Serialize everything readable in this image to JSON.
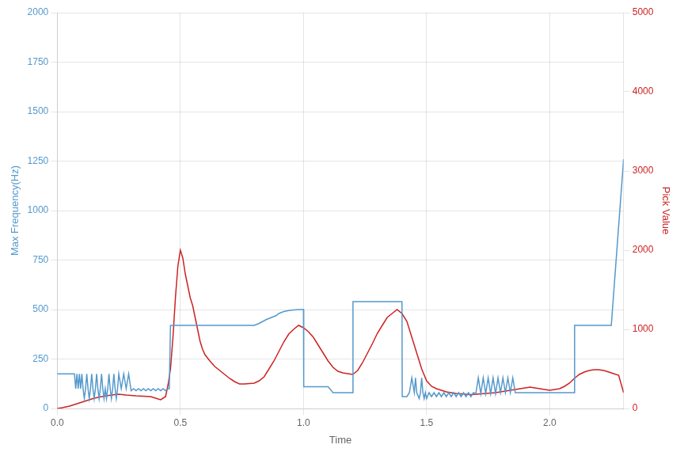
{
  "chart_data": {
    "type": "line",
    "xlabel": "Time",
    "ylabel": "Max Frequency(Hz)",
    "y2label": "Pick Value",
    "xlim": [
      0.0,
      2.3
    ],
    "xticks": [
      {
        "value": 0.0,
        "label": "0.0"
      },
      0.5,
      {
        "value": 1.0,
        "label": "1.0"
      },
      1.5,
      {
        "value": 2.0,
        "label": "2.0"
      }
    ],
    "ylim": [
      0,
      2000
    ],
    "yticks": [
      0,
      250,
      500,
      750,
      1000,
      1250,
      1500,
      1750,
      2000
    ],
    "y2lim": [
      0,
      5000
    ],
    "y2ticks": [
      0,
      1000,
      2000,
      3000,
      4000,
      5000
    ],
    "grid": true,
    "series": [
      {
        "color": "#5599cc",
        "axis": "y",
        "x": [
          0.0,
          0.01,
          0.02,
          0.03,
          0.04,
          0.05,
          0.06,
          0.07,
          0.075,
          0.08,
          0.085,
          0.09,
          0.095,
          0.1,
          0.105,
          0.11,
          0.115,
          0.12,
          0.125,
          0.13,
          0.135,
          0.14,
          0.145,
          0.15,
          0.155,
          0.16,
          0.165,
          0.17,
          0.175,
          0.18,
          0.185,
          0.19,
          0.195,
          0.2,
          0.205,
          0.21,
          0.215,
          0.22,
          0.225,
          0.23,
          0.235,
          0.24,
          0.245,
          0.25,
          0.26,
          0.27,
          0.28,
          0.29,
          0.3,
          0.31,
          0.32,
          0.33,
          0.34,
          0.35,
          0.36,
          0.37,
          0.38,
          0.39,
          0.4,
          0.41,
          0.42,
          0.43,
          0.44,
          0.45,
          0.455,
          0.46,
          0.47,
          0.5,
          0.55,
          0.6,
          0.65,
          0.7,
          0.75,
          0.8,
          0.82,
          0.85,
          0.87,
          0.89,
          0.9,
          0.92,
          0.94,
          0.96,
          0.98,
          1.0,
          1.001,
          1.01,
          1.02,
          1.05,
          1.08,
          1.1,
          1.12,
          1.15,
          1.18,
          1.2,
          1.201,
          1.21,
          1.25,
          1.3,
          1.35,
          1.4,
          1.401,
          1.41,
          1.42,
          1.43,
          1.44,
          1.45,
          1.455,
          1.46,
          1.47,
          1.475,
          1.48,
          1.485,
          1.49,
          1.495,
          1.5,
          1.51,
          1.52,
          1.53,
          1.54,
          1.55,
          1.56,
          1.57,
          1.58,
          1.59,
          1.6,
          1.61,
          1.62,
          1.63,
          1.64,
          1.65,
          1.66,
          1.67,
          1.68,
          1.69,
          1.7,
          1.71,
          1.72,
          1.73,
          1.74,
          1.75,
          1.76,
          1.77,
          1.78,
          1.79,
          1.8,
          1.81,
          1.82,
          1.83,
          1.84,
          1.85,
          1.86,
          1.87,
          1.88,
          1.89,
          1.9,
          1.91,
          1.92,
          1.93,
          1.94,
          1.95,
          1.96,
          1.97,
          1.98,
          1.99,
          2.0,
          2.01,
          2.02,
          2.03,
          2.04,
          2.05,
          2.06,
          2.07,
          2.08,
          2.09,
          2.1,
          2.101,
          2.11,
          2.15,
          2.2,
          2.25,
          2.3
        ],
        "values": [
          175,
          175,
          175,
          175,
          175,
          175,
          175,
          175,
          100,
          175,
          100,
          175,
          100,
          175,
          100,
          50,
          100,
          175,
          100,
          50,
          100,
          175,
          100,
          50,
          100,
          175,
          100,
          50,
          100,
          175,
          100,
          50,
          100,
          50,
          100,
          175,
          100,
          50,
          100,
          175,
          100,
          50,
          100,
          175,
          100,
          175,
          100,
          175,
          90,
          100,
          90,
          100,
          90,
          100,
          90,
          100,
          90,
          100,
          90,
          100,
          90,
          100,
          90,
          100,
          100,
          420,
          420,
          420,
          420,
          420,
          420,
          420,
          420,
          420,
          430,
          450,
          460,
          470,
          480,
          490,
          495,
          498,
          500,
          500,
          110,
          110,
          110,
          110,
          110,
          110,
          80,
          80,
          80,
          80,
          540,
          540,
          540,
          540,
          540,
          540,
          60,
          60,
          60,
          80,
          155,
          80,
          155,
          80,
          50,
          80,
          155,
          80,
          50,
          80,
          50,
          80,
          60,
          80,
          60,
          80,
          60,
          80,
          60,
          80,
          60,
          80,
          60,
          80,
          60,
          80,
          60,
          80,
          60,
          80,
          75,
          155,
          75,
          155,
          75,
          155,
          75,
          155,
          75,
          155,
          80,
          155,
          80,
          155,
          80,
          155,
          80,
          80,
          80,
          80,
          80,
          80,
          80,
          80,
          80,
          80,
          80,
          80,
          80,
          80,
          80,
          80,
          80,
          80,
          80,
          80,
          80,
          80,
          80,
          80,
          80,
          420,
          420,
          420,
          420,
          420,
          1260
        ]
      },
      {
        "color": "#cc2222",
        "axis": "y2",
        "x": [
          0.0,
          0.02,
          0.05,
          0.08,
          0.1,
          0.12,
          0.15,
          0.18,
          0.2,
          0.22,
          0.25,
          0.28,
          0.3,
          0.32,
          0.35,
          0.38,
          0.4,
          0.42,
          0.44,
          0.45,
          0.46,
          0.47,
          0.48,
          0.49,
          0.5,
          0.51,
          0.52,
          0.53,
          0.54,
          0.55,
          0.56,
          0.57,
          0.58,
          0.59,
          0.6,
          0.62,
          0.64,
          0.66,
          0.68,
          0.7,
          0.72,
          0.74,
          0.76,
          0.78,
          0.8,
          0.82,
          0.84,
          0.86,
          0.88,
          0.9,
          0.92,
          0.94,
          0.96,
          0.98,
          1.0,
          1.02,
          1.04,
          1.06,
          1.08,
          1.1,
          1.12,
          1.14,
          1.16,
          1.18,
          1.2,
          1.22,
          1.24,
          1.26,
          1.28,
          1.3,
          1.32,
          1.34,
          1.36,
          1.38,
          1.4,
          1.42,
          1.44,
          1.46,
          1.48,
          1.5,
          1.52,
          1.54,
          1.56,
          1.58,
          1.6,
          1.62,
          1.64,
          1.66,
          1.68,
          1.7,
          1.72,
          1.74,
          1.76,
          1.78,
          1.8,
          1.82,
          1.84,
          1.86,
          1.88,
          1.9,
          1.92,
          1.94,
          1.96,
          1.98,
          2.0,
          2.02,
          2.04,
          2.06,
          2.08,
          2.1,
          2.12,
          2.14,
          2.16,
          2.18,
          2.2,
          2.22,
          2.24,
          2.26,
          2.28,
          2.3
        ],
        "values": [
          0,
          10,
          30,
          60,
          80,
          100,
          130,
          150,
          160,
          170,
          180,
          170,
          165,
          160,
          155,
          150,
          130,
          110,
          150,
          300,
          500,
          900,
          1400,
          1800,
          2000,
          1900,
          1700,
          1550,
          1400,
          1300,
          1150,
          1000,
          850,
          750,
          680,
          600,
          530,
          480,
          430,
          380,
          340,
          310,
          310,
          315,
          320,
          350,
          400,
          500,
          600,
          720,
          840,
          940,
          1000,
          1050,
          1020,
          970,
          900,
          800,
          700,
          600,
          520,
          470,
          450,
          440,
          430,
          480,
          580,
          700,
          820,
          950,
          1050,
          1150,
          1200,
          1250,
          1200,
          1100,
          900,
          700,
          500,
          350,
          280,
          250,
          230,
          210,
          200,
          190,
          185,
          180,
          175,
          180,
          185,
          190,
          195,
          200,
          210,
          220,
          230,
          240,
          250,
          260,
          270,
          260,
          250,
          240,
          230,
          240,
          250,
          280,
          320,
          380,
          430,
          460,
          480,
          490,
          490,
          480,
          460,
          440,
          420,
          200
        ]
      }
    ]
  }
}
